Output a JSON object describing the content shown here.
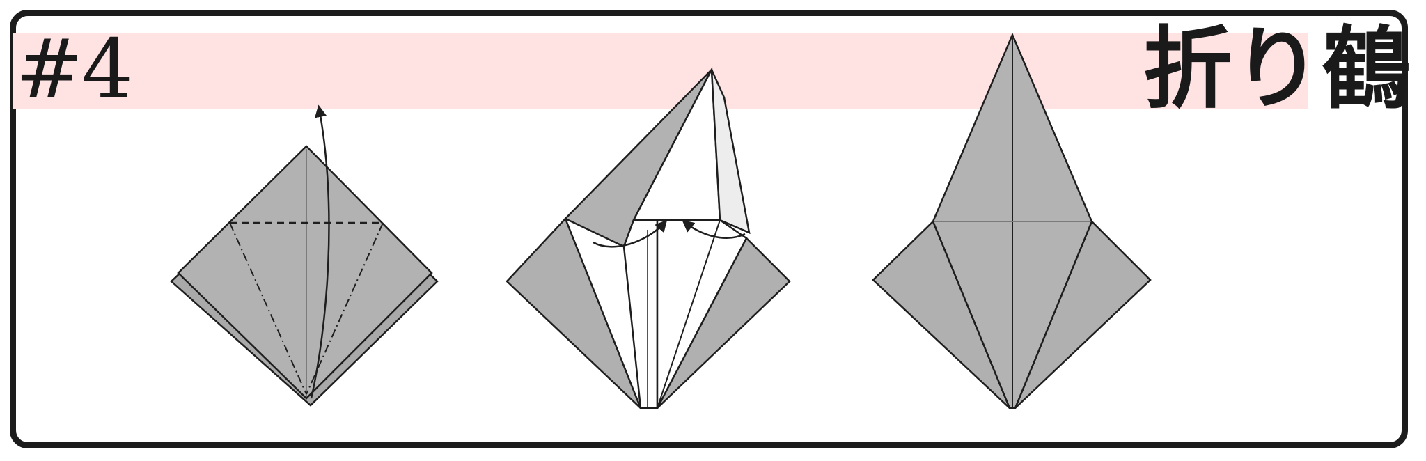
{
  "header": {
    "step_label": "#4",
    "title": "折り鶴"
  },
  "colors": {
    "paper_fold": "#b0b0b0",
    "paper_white": "#ffffff",
    "line": "#1e1e1e",
    "band": "#ffe3e3",
    "frame": "#1c1c1c"
  }
}
